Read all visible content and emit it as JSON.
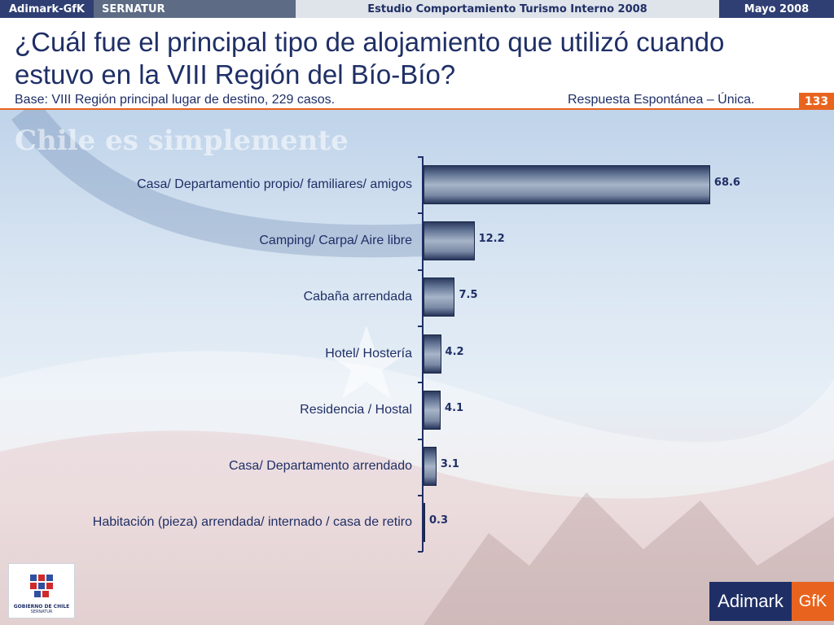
{
  "topbar": {
    "brand": "Adimark-GfK",
    "client": "SERNATUR",
    "study": "Estudio Comportamiento Turismo Interno 2008",
    "date": "Mayo 2008"
  },
  "header": {
    "title": "¿Cuál fue el principal tipo de alojamiento que utilizó cuando estuvo en la VIII Región del Bío-Bío?",
    "base": "Base: VIII Región principal lugar de destino, 229 casos.",
    "response_type": "Respuesta Espontánea – Única.",
    "page_number": "133"
  },
  "background": {
    "ghost_text": "Chile es simplemente"
  },
  "colors": {
    "navy": "#1f2f66",
    "orange": "#e8641e"
  },
  "chart_data": {
    "type": "bar",
    "orientation": "horizontal",
    "categories": [
      "Casa/ Departamentio propio/ familiares/ amigos",
      "Camping/ Carpa/ Aire libre",
      "Cabaña arrendada",
      "Hotel/ Hostería",
      "Residencia / Hostal",
      "Casa/ Departamento arrendado",
      "Habitación (pieza) arrendada/ internado / casa de retiro"
    ],
    "values": [
      68.6,
      12.2,
      7.5,
      4.2,
      4.1,
      3.1,
      0.3
    ],
    "value_labels": [
      "68.6",
      "12.2",
      "7.5",
      "4.2",
      "4.1",
      "3.1",
      "0.3"
    ],
    "xlim": [
      0,
      100
    ]
  },
  "logos": {
    "gov_line1": "GOBIERNO DE CHILE",
    "gov_line2": "SERNATUR",
    "adimark": "Adimark",
    "gfk": "GfK"
  }
}
